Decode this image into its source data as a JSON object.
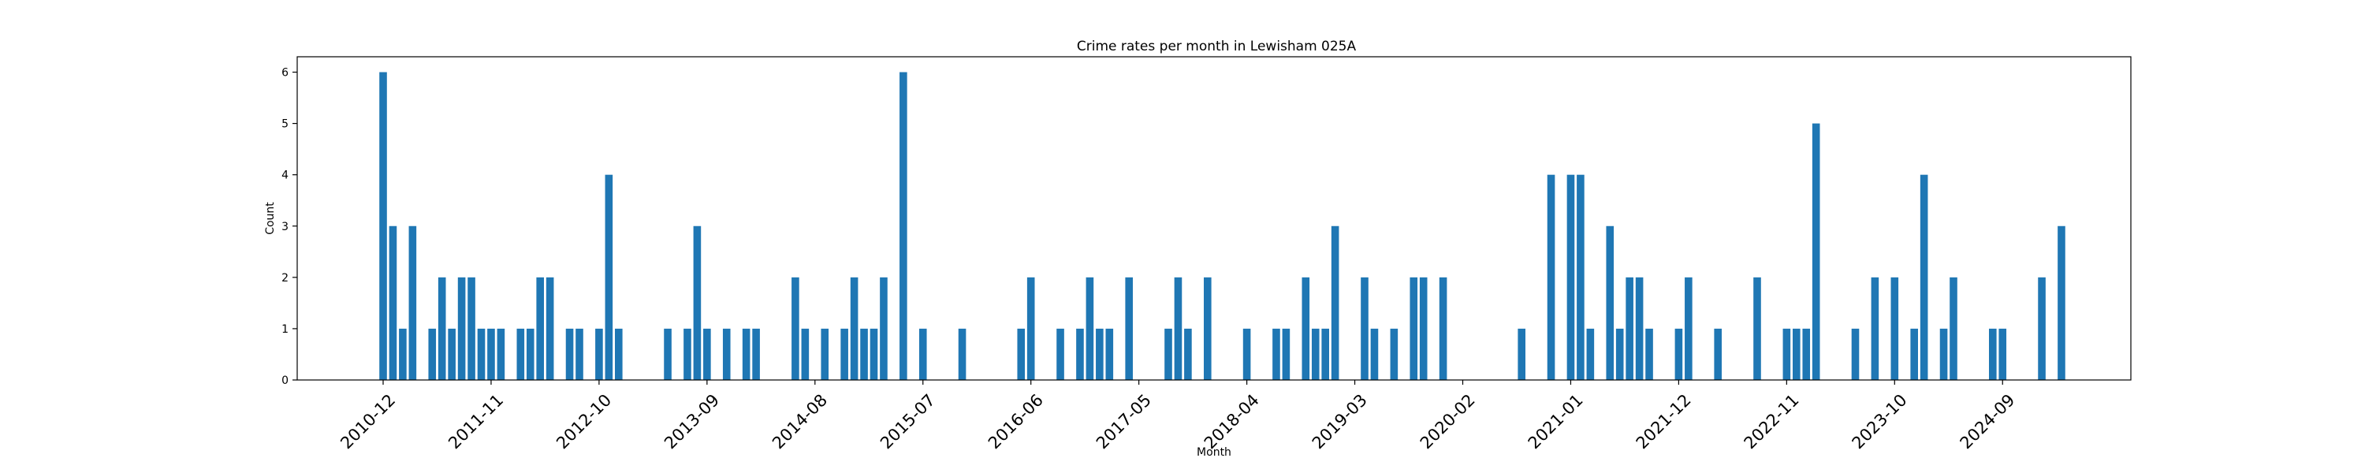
{
  "chart_data": {
    "type": "bar",
    "title": "Crime rates per month in Lewisham 025A",
    "xlabel": "Month",
    "ylabel": "Count",
    "ylim": [
      0,
      6.3
    ],
    "yticks": [
      0,
      1,
      2,
      3,
      4,
      5,
      6
    ],
    "xtick_labels": [
      "2010-12",
      "2011-11",
      "2012-10",
      "2013-09",
      "2014-08",
      "2015-07",
      "2016-06",
      "2017-05",
      "2018-04",
      "2019-03",
      "2020-02",
      "2021-01",
      "2021-12",
      "2022-11",
      "2023-10",
      "2024-09"
    ],
    "start_month": "2010-12",
    "bar_color": "#1f77b4",
    "grid": false,
    "months": [
      "2010-12",
      "2011-01",
      "2011-02",
      "2011-03",
      "2011-05",
      "2011-06",
      "2011-07",
      "2011-08",
      "2011-09",
      "2011-10",
      "2011-11",
      "2011-12",
      "2012-02",
      "2012-03",
      "2012-04",
      "2012-05",
      "2012-07",
      "2012-08",
      "2012-10",
      "2012-11",
      "2012-12",
      "2013-05",
      "2013-07",
      "2013-08",
      "2013-09",
      "2013-11",
      "2014-01",
      "2014-02",
      "2014-06",
      "2014-07",
      "2014-09",
      "2014-11",
      "2014-12",
      "2015-01",
      "2015-02",
      "2015-03",
      "2015-05",
      "2015-07",
      "2015-11",
      "2016-05",
      "2016-06",
      "2016-09",
      "2016-11",
      "2016-12",
      "2017-01",
      "2017-02",
      "2017-04",
      "2017-08",
      "2017-09",
      "2017-10",
      "2017-12",
      "2018-04",
      "2018-07",
      "2018-08",
      "2018-10",
      "2018-11",
      "2018-12",
      "2019-01",
      "2019-04",
      "2019-05",
      "2019-07",
      "2019-09",
      "2019-10",
      "2019-12",
      "2020-08",
      "2020-11",
      "2021-01",
      "2021-02",
      "2021-03",
      "2021-05",
      "2021-06",
      "2021-07",
      "2021-08",
      "2021-09",
      "2021-12",
      "2022-01",
      "2022-04",
      "2022-08",
      "2022-11",
      "2022-12",
      "2023-01",
      "2023-02",
      "2023-06",
      "2023-08",
      "2023-10",
      "2023-12",
      "2024-01",
      "2024-03",
      "2024-04",
      "2024-08",
      "2024-09",
      "2025-01",
      "2025-03"
    ],
    "values": [
      6,
      3,
      1,
      3,
      1,
      2,
      1,
      2,
      2,
      1,
      1,
      1,
      1,
      1,
      2,
      2,
      1,
      1,
      1,
      4,
      1,
      1,
      1,
      3,
      1,
      1,
      1,
      1,
      2,
      1,
      1,
      1,
      2,
      1,
      1,
      2,
      6,
      1,
      1,
      1,
      2,
      1,
      1,
      2,
      1,
      1,
      2,
      1,
      2,
      1,
      2,
      1,
      1,
      1,
      2,
      1,
      1,
      3,
      2,
      1,
      1,
      2,
      2,
      2,
      1,
      4,
      4,
      4,
      1,
      3,
      1,
      2,
      2,
      1,
      1,
      2,
      1,
      2,
      1,
      1,
      1,
      5,
      1,
      2,
      2,
      1,
      4,
      1,
      2,
      1,
      1,
      2,
      3
    ]
  }
}
